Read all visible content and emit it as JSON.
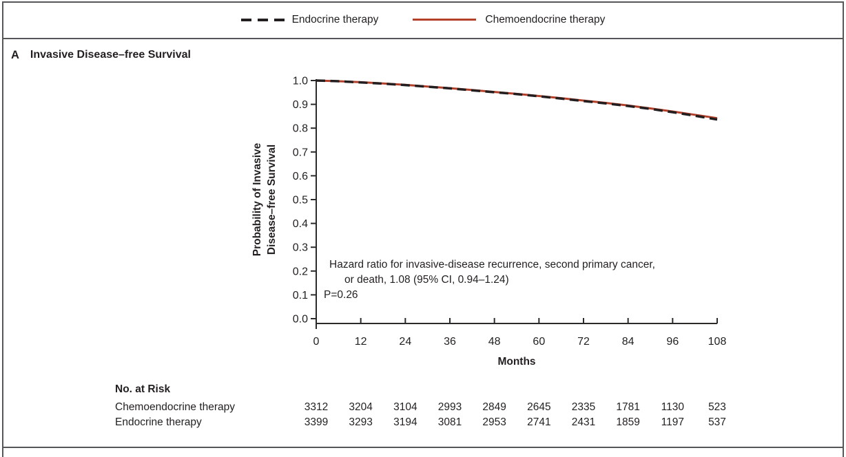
{
  "legend": {
    "endocrine_label": "Endocrine therapy",
    "chemoendocrine_label": "Chemoendocrine therapy"
  },
  "panel": {
    "letter": "A",
    "title": "Invasive Disease–free Survival"
  },
  "annotation": {
    "line1": "Hazard ratio for invasive-disease recurrence, second primary cancer,",
    "line2": "or death, 1.08 (95% CI, 0.94–1.24)",
    "line3": "P=0.26"
  },
  "chart_data": {
    "type": "line",
    "title": "Invasive Disease–free Survival",
    "xlabel": "Months",
    "ylabel": "Probability of Invasive Disease–free Survival",
    "ylabel_lines": [
      "Probability of Invasive",
      "Disease–free Survival"
    ],
    "xlim": [
      0,
      108
    ],
    "ylim": [
      0.0,
      1.0
    ],
    "x_ticks": [
      0,
      12,
      24,
      36,
      48,
      60,
      72,
      84,
      96,
      108
    ],
    "y_tick_labels": [
      "1.0",
      "0.9",
      "0.8",
      "0.7",
      "0.6",
      "0.5",
      "0.4",
      "0.3",
      "0.2",
      "0.1",
      "0.0"
    ],
    "grid": false,
    "legend_position": "top",
    "x": [
      0,
      6,
      12,
      18,
      24,
      30,
      36,
      42,
      48,
      54,
      60,
      66,
      72,
      78,
      84,
      90,
      96,
      102,
      108
    ],
    "series": [
      {
        "name": "Chemoendocrine therapy",
        "style": "solid",
        "color": "#b5402a",
        "values": [
          1.0,
          0.997,
          0.993,
          0.988,
          0.982,
          0.975,
          0.968,
          0.96,
          0.952,
          0.944,
          0.935,
          0.926,
          0.916,
          0.906,
          0.895,
          0.883,
          0.87,
          0.856,
          0.842
        ]
      },
      {
        "name": "Endocrine therapy",
        "style": "dashed",
        "color": "#231f20",
        "values": [
          1.0,
          0.997,
          0.992,
          0.987,
          0.981,
          0.974,
          0.967,
          0.959,
          0.951,
          0.943,
          0.934,
          0.924,
          0.914,
          0.904,
          0.893,
          0.881,
          0.867,
          0.852,
          0.836
        ]
      }
    ]
  },
  "risk_table": {
    "header": "No. at Risk",
    "months": [
      0,
      12,
      24,
      36,
      48,
      60,
      72,
      84,
      96,
      108
    ],
    "rows": [
      {
        "label": "Chemoendocrine therapy",
        "values": [
          3312,
          3204,
          3104,
          2993,
          2849,
          2645,
          2335,
          1781,
          1130,
          523
        ]
      },
      {
        "label": "Endocrine therapy",
        "values": [
          3399,
          3293,
          3194,
          3081,
          2953,
          2741,
          2431,
          1859,
          1197,
          537
        ]
      }
    ]
  },
  "colors": {
    "endocrine_line": "#231f20",
    "chemoendocrine_line": "#b5402a",
    "frame_border": "#55565a",
    "axis": "#2b2a28",
    "text": "#231f20"
  }
}
